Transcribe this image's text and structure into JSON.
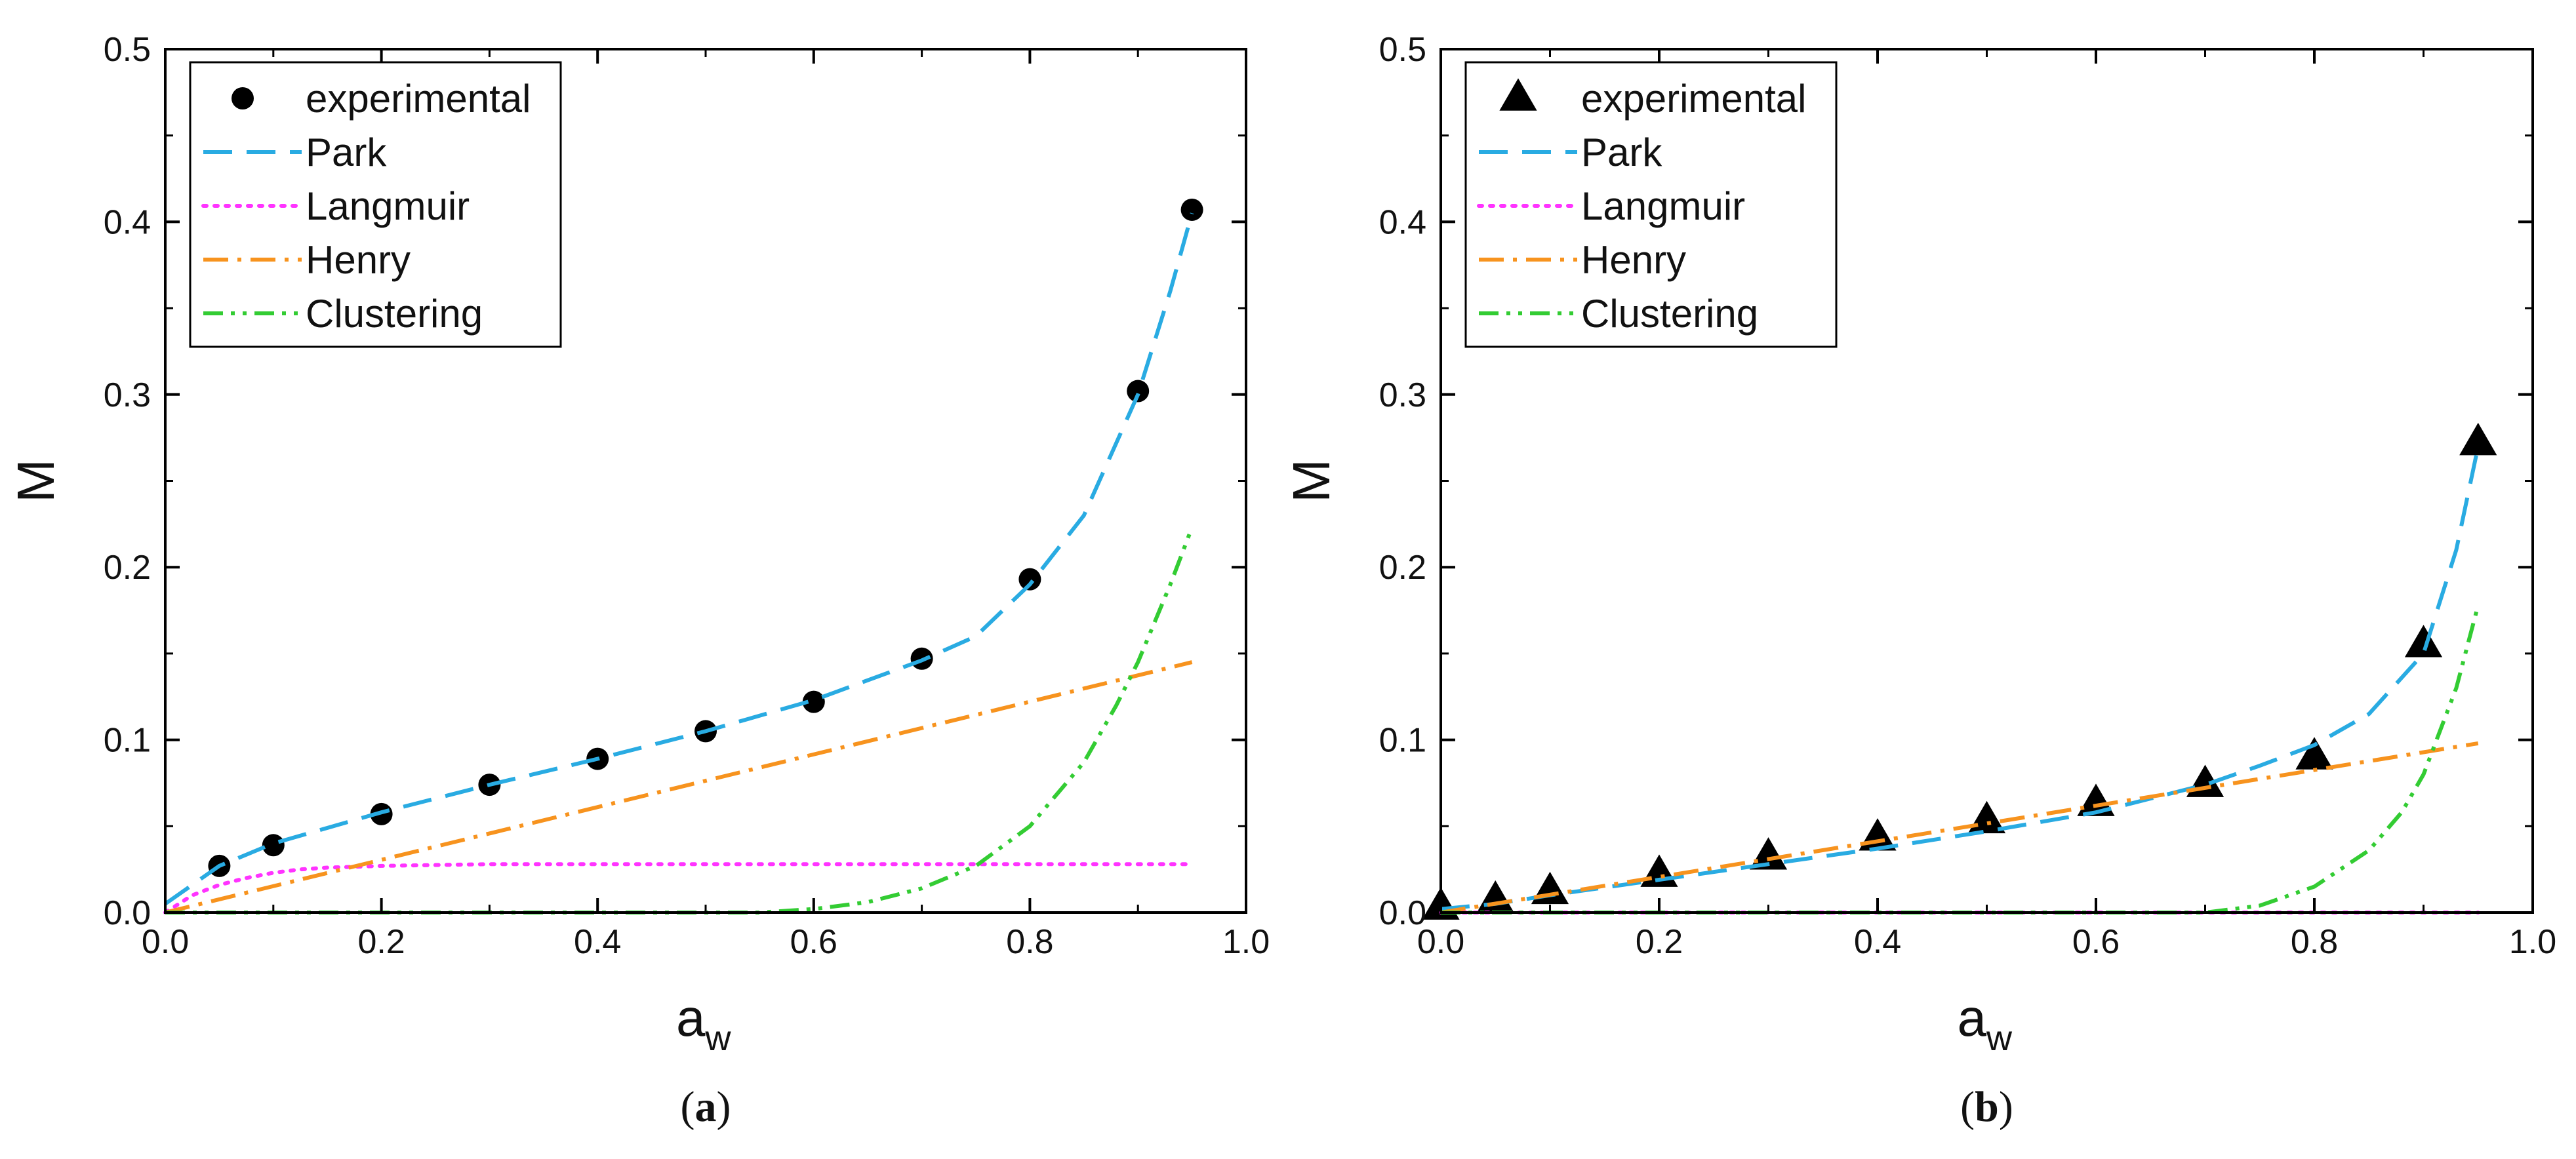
{
  "figure": {
    "background": "#ffffff",
    "series_colors": {
      "experimental": "#000000",
      "Park": "#29abe2",
      "Langmuir": "#ff33ff",
      "Henry": "#f7931e",
      "Clustering": "#33cc33"
    }
  },
  "chart_data": [
    {
      "type": "line",
      "panel": "a",
      "caption": {
        "open": "(",
        "letter": "a",
        "close": ")"
      },
      "xlabel": {
        "main": "a",
        "sub": "w"
      },
      "ylabel": "M",
      "xlim": [
        0.0,
        1.0
      ],
      "ylim": [
        0.0,
        0.5
      ],
      "xticks": [
        "0.0",
        "0.2",
        "0.4",
        "0.6",
        "0.8",
        "1.0"
      ],
      "yticks": [
        "0.0",
        "0.1",
        "0.2",
        "0.3",
        "0.4",
        "0.5"
      ],
      "grid": false,
      "legend": {
        "position": "top-left",
        "entries": [
          "experimental",
          "Park",
          "Langmuir",
          "Henry",
          "Clustering"
        ]
      },
      "series": [
        {
          "name": "experimental",
          "style": "marker-circle",
          "color": "#000000",
          "x": [
            0.05,
            0.1,
            0.2,
            0.3,
            0.4,
            0.5,
            0.6,
            0.7,
            0.8,
            0.9,
            0.95
          ],
          "y": [
            0.027,
            0.039,
            0.057,
            0.074,
            0.089,
            0.105,
            0.122,
            0.147,
            0.193,
            0.302,
            0.407
          ]
        },
        {
          "name": "Park",
          "style": "dash",
          "color": "#29abe2",
          "x": [
            0.0,
            0.05,
            0.1,
            0.2,
            0.3,
            0.4,
            0.5,
            0.6,
            0.7,
            0.75,
            0.8,
            0.85,
            0.9,
            0.93,
            0.95
          ],
          "y": [
            0.005,
            0.027,
            0.04,
            0.058,
            0.074,
            0.089,
            0.105,
            0.123,
            0.146,
            0.16,
            0.19,
            0.23,
            0.3,
            0.36,
            0.405
          ]
        },
        {
          "name": "Langmuir",
          "style": "dot",
          "color": "#ff33ff",
          "x": [
            0.0,
            0.025,
            0.05,
            0.075,
            0.1,
            0.125,
            0.15,
            0.2,
            0.3,
            0.4,
            0.5,
            0.6,
            0.7,
            0.8,
            0.9,
            0.95
          ],
          "y": [
            0.0,
            0.01,
            0.016,
            0.02,
            0.023,
            0.025,
            0.026,
            0.027,
            0.028,
            0.028,
            0.028,
            0.028,
            0.028,
            0.028,
            0.028,
            0.028
          ]
        },
        {
          "name": "Henry",
          "style": "dashdot",
          "color": "#f7931e",
          "x": [
            0.0,
            0.95
          ],
          "y": [
            0.0,
            0.145
          ]
        },
        {
          "name": "Clustering",
          "style": "dashdotdot",
          "color": "#33cc33",
          "x": [
            0.0,
            0.55,
            0.6,
            0.65,
            0.7,
            0.75,
            0.8,
            0.85,
            0.88,
            0.9,
            0.93,
            0.95
          ],
          "y": [
            0.0,
            0.0,
            0.002,
            0.006,
            0.014,
            0.027,
            0.05,
            0.087,
            0.12,
            0.145,
            0.19,
            0.223
          ]
        }
      ]
    },
    {
      "type": "line",
      "panel": "b",
      "caption": {
        "open": "(",
        "letter": "b",
        "close": ")"
      },
      "xlabel": {
        "main": "a",
        "sub": "w"
      },
      "ylabel": "M",
      "xlim": [
        0.0,
        1.0
      ],
      "ylim": [
        0.0,
        0.5
      ],
      "xticks": [
        "0.0",
        "0.2",
        "0.4",
        "0.6",
        "0.8",
        "1.0"
      ],
      "yticks": [
        "0.0",
        "0.1",
        "0.2",
        "0.3",
        "0.4",
        "0.5"
      ],
      "grid": false,
      "legend": {
        "position": "top-left",
        "entries": [
          "experimental",
          "Park",
          "Langmuir",
          "Henry",
          "Clustering"
        ]
      },
      "series": [
        {
          "name": "experimental",
          "style": "marker-triangle",
          "color": "#000000",
          "x": [
            0.0,
            0.05,
            0.1,
            0.2,
            0.3,
            0.4,
            0.5,
            0.6,
            0.7,
            0.8,
            0.9,
            0.95
          ],
          "y": [
            0.003,
            0.007,
            0.012,
            0.022,
            0.032,
            0.043,
            0.053,
            0.063,
            0.074,
            0.09,
            0.155,
            0.272
          ]
        },
        {
          "name": "Park",
          "style": "dash",
          "color": "#29abe2",
          "x": [
            0.0,
            0.05,
            0.1,
            0.2,
            0.3,
            0.4,
            0.5,
            0.6,
            0.7,
            0.75,
            0.8,
            0.85,
            0.9,
            0.93,
            0.95
          ],
          "y": [
            0.002,
            0.005,
            0.01,
            0.019,
            0.028,
            0.037,
            0.047,
            0.058,
            0.074,
            0.085,
            0.097,
            0.115,
            0.15,
            0.21,
            0.27
          ]
        },
        {
          "name": "Langmuir",
          "style": "dot",
          "color": "#ff33ff",
          "x": [
            0.0,
            0.95
          ],
          "y": [
            0.0,
            0.0
          ]
        },
        {
          "name": "Henry",
          "style": "dashdot",
          "color": "#f7931e",
          "x": [
            0.0,
            0.95
          ],
          "y": [
            0.0,
            0.098
          ]
        },
        {
          "name": "Clustering",
          "style": "dashdotdot",
          "color": "#33cc33",
          "x": [
            0.0,
            0.7,
            0.75,
            0.8,
            0.85,
            0.88,
            0.9,
            0.93,
            0.95
          ],
          "y": [
            0.0,
            0.0,
            0.004,
            0.015,
            0.036,
            0.058,
            0.08,
            0.13,
            0.178
          ]
        }
      ]
    }
  ]
}
